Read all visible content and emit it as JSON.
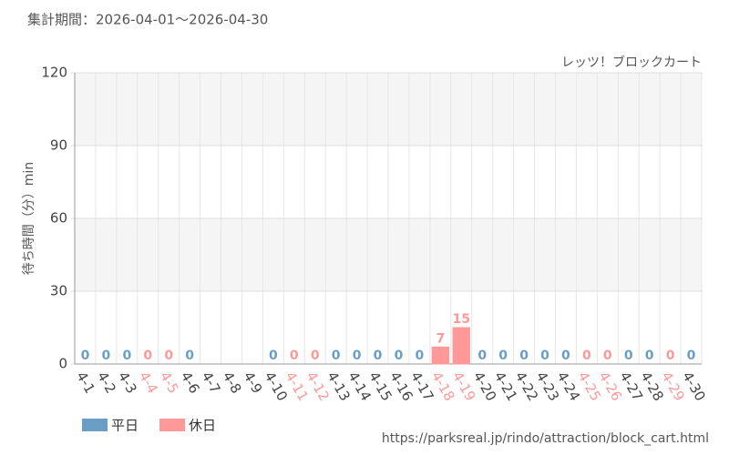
{
  "chart_data": {
    "type": "bar",
    "title": "集計期間：2026-04-01～2026-04-30",
    "subtitle": "レッツ！ブロックカート",
    "y_label": "待ち時間（分）min",
    "source": "https://parksreal.jp/rindo/attraction/block_cart.html",
    "categories": [
      "4-1",
      "4-2",
      "4-3",
      "4-4",
      "4-5",
      "4-6",
      "4-7",
      "4-8",
      "4-9",
      "4-10",
      "4-11",
      "4-12",
      "4-13",
      "4-14",
      "4-15",
      "4-16",
      "4-17",
      "4-18",
      "4-19",
      "4-20",
      "4-21",
      "4-22",
      "4-23",
      "4-24",
      "4-25",
      "4-26",
      "4-27",
      "4-28",
      "4-29",
      "4-30"
    ],
    "series": [
      {
        "name": "平日",
        "color": "#6a9ec5",
        "values": [
          0,
          0,
          0,
          null,
          null,
          0,
          null,
          null,
          null,
          0,
          null,
          null,
          0,
          0,
          0,
          0,
          0,
          null,
          null,
          0,
          0,
          0,
          0,
          0,
          null,
          null,
          0,
          0,
          null,
          0
        ]
      },
      {
        "name": "休日",
        "color": "#ff9999",
        "values": [
          null,
          null,
          null,
          0,
          0,
          null,
          null,
          null,
          null,
          null,
          0,
          0,
          null,
          null,
          null,
          null,
          null,
          7,
          15,
          null,
          null,
          null,
          null,
          null,
          0,
          0,
          null,
          null,
          0,
          null
        ]
      }
    ],
    "ylim": [
      0,
      120
    ],
    "yticks": [
      0,
      30,
      60,
      90,
      120
    ],
    "grid": true
  }
}
